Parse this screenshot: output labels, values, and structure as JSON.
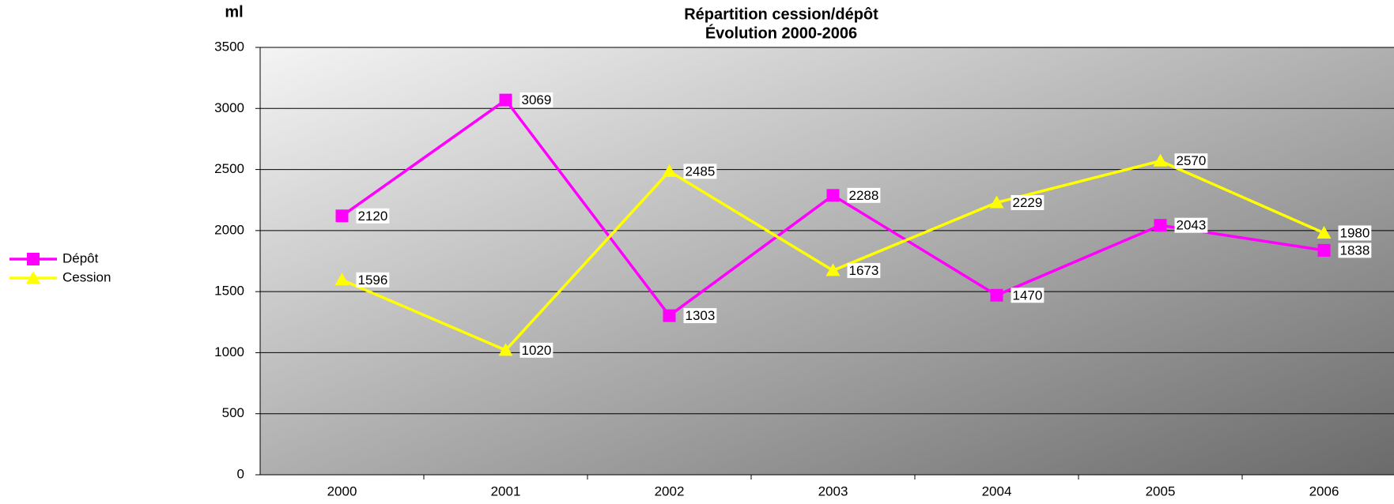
{
  "chart_data": {
    "type": "line",
    "title": "Répartition cession/dépôt",
    "subtitle": "Évolution 2000-2006",
    "y_label": "ml",
    "categories": [
      "2000",
      "2001",
      "2002",
      "2003",
      "2004",
      "2005",
      "2006"
    ],
    "series": [
      {
        "name": "Dépôt",
        "color": "#ff00ff",
        "marker": "square",
        "values": [
          2120,
          3069,
          1303,
          2288,
          1470,
          2043,
          1838
        ]
      },
      {
        "name": "Cession",
        "color": "#ffff00",
        "marker": "triangle",
        "values": [
          1596,
          1020,
          2485,
          1673,
          2229,
          2570,
          1980
        ]
      }
    ],
    "ylim": [
      0,
      3500
    ],
    "yticks": [
      0,
      500,
      1000,
      1500,
      2000,
      2500,
      3000,
      3500
    ],
    "grid": true,
    "legend": "left"
  }
}
